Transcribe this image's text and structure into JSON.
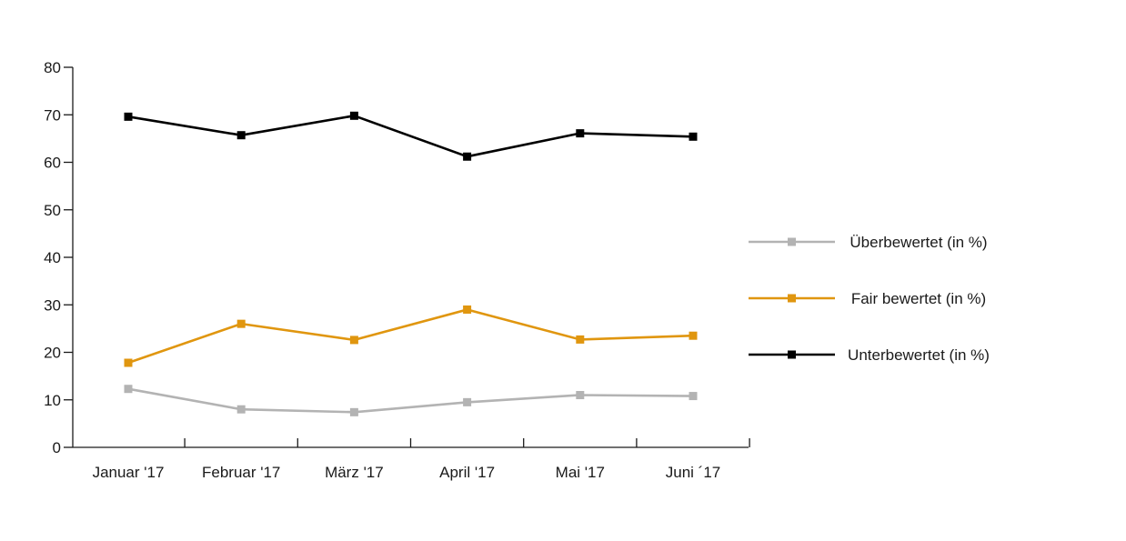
{
  "chart_data": {
    "type": "line",
    "categories": [
      "Januar '17",
      "Februar '17",
      "März '17",
      "April '17",
      "Mai '17",
      "Juni ´17"
    ],
    "series": [
      {
        "name": "Überbewertet (in %)",
        "color": "#b3b3b3",
        "values": [
          12.3,
          8.0,
          7.4,
          9.5,
          11.0,
          10.8
        ]
      },
      {
        "name": "Fair bewertet (in %)",
        "color": "#e0960f",
        "values": [
          17.8,
          26.0,
          22.6,
          29.0,
          22.7,
          23.5
        ]
      },
      {
        "name": "Unterbewertet (in %)",
        "color": "#000000",
        "values": [
          69.6,
          65.7,
          69.8,
          61.2,
          66.1,
          65.4
        ]
      }
    ],
    "yticks": [
      0,
      10,
      20,
      30,
      40,
      50,
      60,
      70,
      80
    ],
    "ylim": [
      0,
      80
    ],
    "title": "",
    "xlabel": "",
    "ylabel": "",
    "grid": false,
    "legend_position": "right"
  }
}
